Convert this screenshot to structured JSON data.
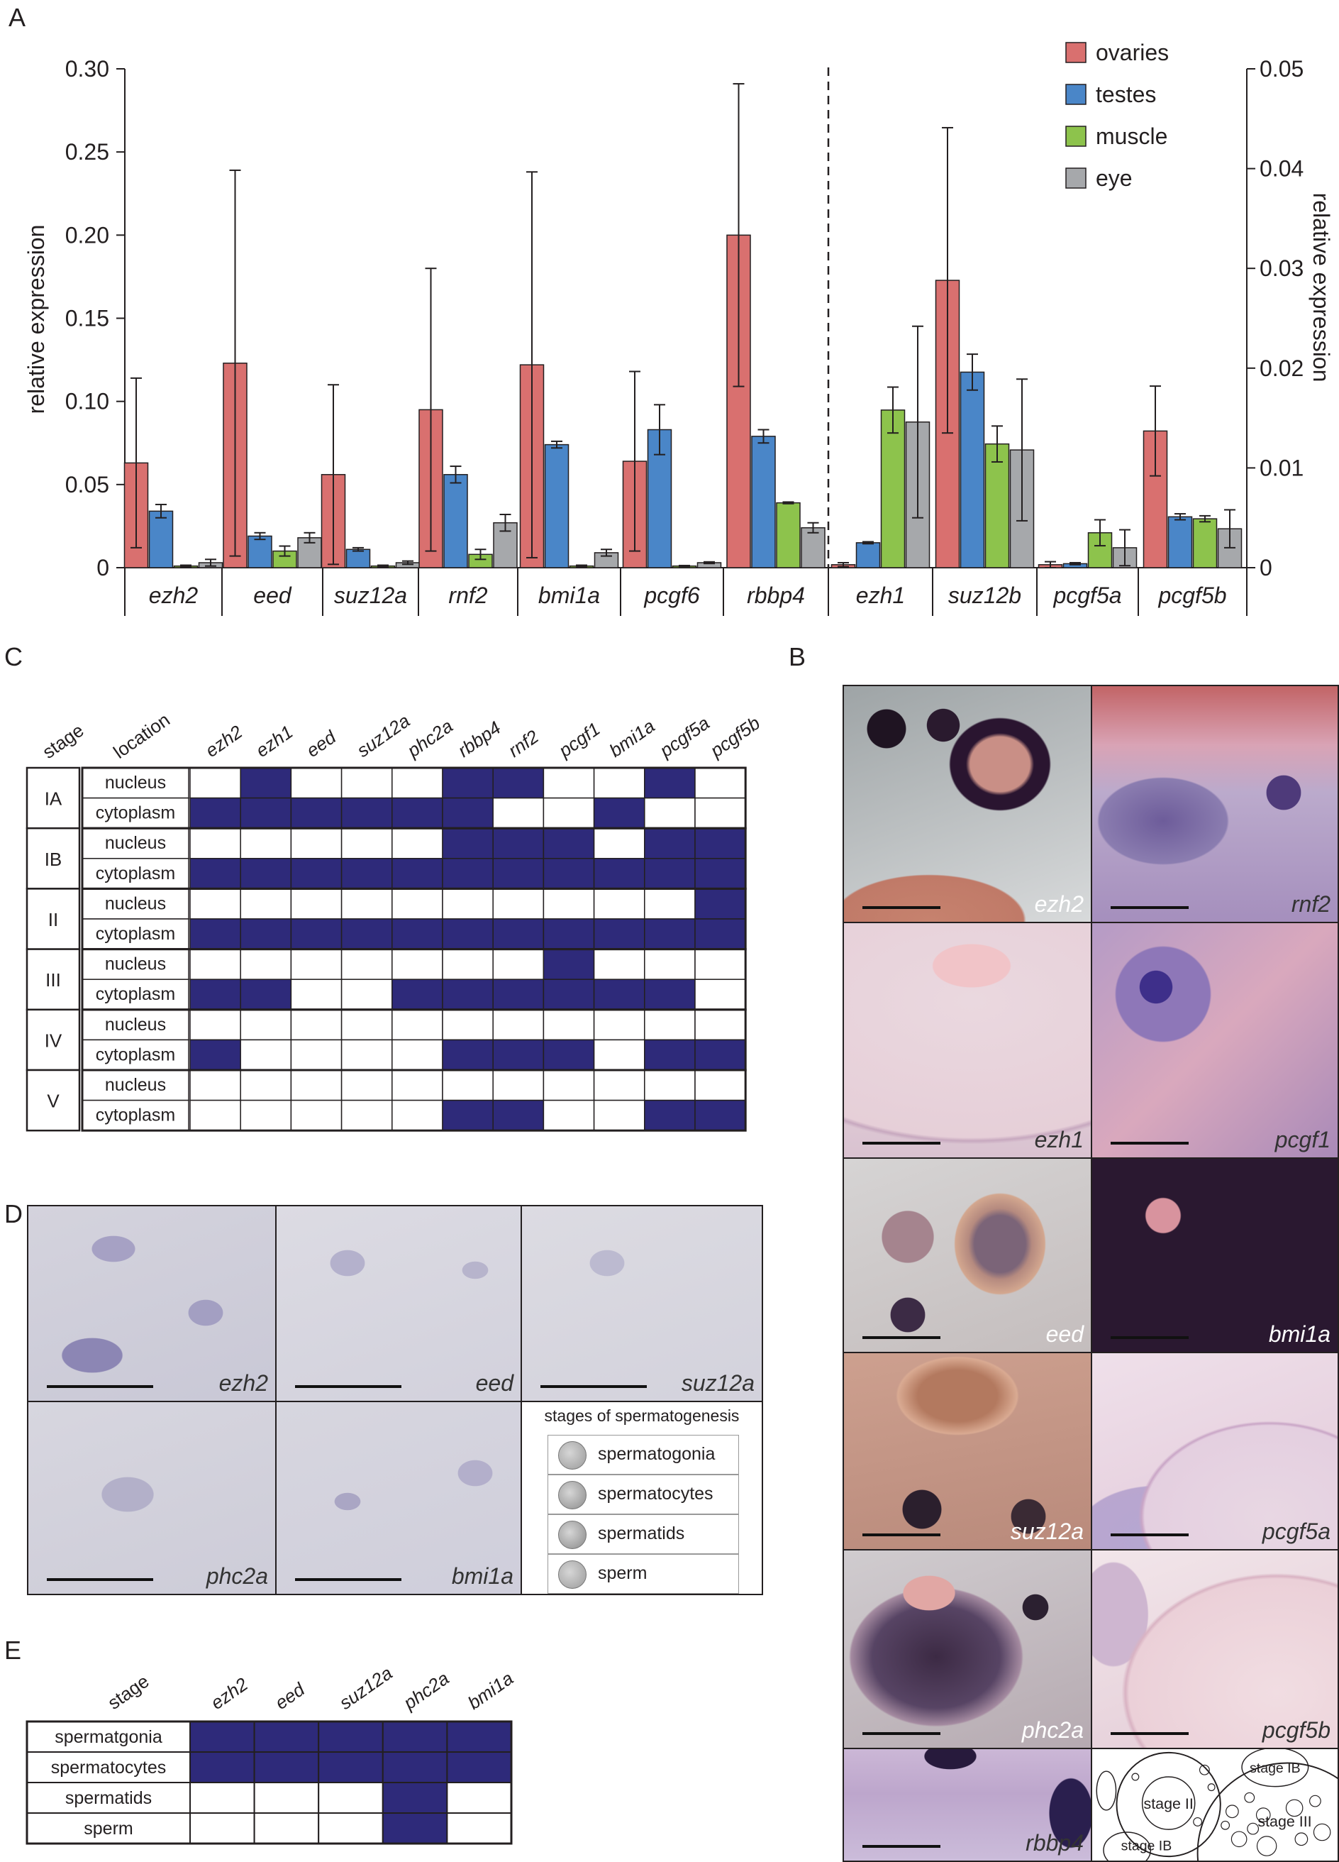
{
  "panels": {
    "a": "A",
    "b": "B",
    "c": "C",
    "d": "D",
    "e": "E"
  },
  "chart_data": {
    "type": "bar",
    "ylabel_left": "relative expression",
    "ylabel_right": "relative expression",
    "ylim_left": [
      0,
      0.3
    ],
    "ylim_right": [
      0,
      0.05
    ],
    "yticks_left": [
      "0",
      "0.05",
      "0.10",
      "0.15",
      "0.20",
      "0.25",
      "0.30"
    ],
    "yticks_right": [
      "0",
      "0.01",
      "0.02",
      "0.03",
      "0.04",
      "0.05"
    ],
    "colors": {
      "ovaries": "#d9706f",
      "testes": "#4a86c8",
      "muscle": "#8dc34c",
      "eye": "#a6a8ab"
    },
    "series_names": [
      "ovaries",
      "testes",
      "muscle",
      "eye"
    ],
    "groups_left": [
      {
        "gene": "ezh2",
        "values": [
          0.063,
          0.034,
          0.001,
          0.003
        ],
        "errors": [
          0.051,
          0.004,
          0.0005,
          0.002
        ]
      },
      {
        "gene": "eed",
        "values": [
          0.123,
          0.019,
          0.01,
          0.018
        ],
        "errors": [
          0.116,
          0.002,
          0.003,
          0.003
        ]
      },
      {
        "gene": "suz12a",
        "values": [
          0.056,
          0.011,
          0.001,
          0.003
        ],
        "errors": [
          0.054,
          0.001,
          0.0005,
          0.001
        ]
      },
      {
        "gene": "rnf2",
        "values": [
          0.095,
          0.056,
          0.008,
          0.027
        ],
        "errors": [
          0.085,
          0.005,
          0.003,
          0.005
        ]
      },
      {
        "gene": "bmi1a",
        "values": [
          0.122,
          0.074,
          0.001,
          0.009
        ],
        "errors": [
          0.116,
          0.002,
          0.0005,
          0.002
        ]
      },
      {
        "gene": "pcgf6",
        "values": [
          0.064,
          0.083,
          0.001,
          0.003
        ],
        "errors": [
          0.054,
          0.015,
          0.0003,
          0.0005
        ]
      },
      {
        "gene": "rbbp4",
        "values": [
          0.2,
          0.079,
          0.039,
          0.024
        ],
        "errors": [
          0.091,
          0.004,
          0.0005,
          0.003
        ]
      }
    ],
    "groups_right": [
      {
        "gene": "ezh1",
        "values": [
          0.0003,
          0.0025,
          0.0158,
          0.0146
        ],
        "errors": [
          0.0002,
          0.0001,
          0.0023,
          0.0096
        ]
      },
      {
        "gene": "suz12b",
        "values": [
          0.0288,
          0.0196,
          0.0124,
          0.0118
        ],
        "errors": [
          0.0153,
          0.0018,
          0.0018,
          0.0071
        ]
      },
      {
        "gene": "pcgf5a",
        "values": [
          0.0003,
          0.0004,
          0.0035,
          0.002
        ],
        "errors": [
          0.0003,
          0.0001,
          0.0013,
          0.0018
        ]
      },
      {
        "gene": "pcgf5b",
        "values": [
          0.0137,
          0.0051,
          0.0049,
          0.0039
        ],
        "errors": [
          0.0045,
          0.0003,
          0.0003,
          0.0019
        ]
      }
    ]
  },
  "table_c": {
    "header_stage": "stage",
    "header_location": "location",
    "genes": [
      "ezh2",
      "ezh1",
      "eed",
      "suz12a",
      "phc2a",
      "rbbp4",
      "rnf2",
      "pcgf1",
      "bmi1a",
      "pcgf5a",
      "pcgf5b"
    ],
    "stages": [
      "IA",
      "IB",
      "II",
      "III",
      "IV",
      "V"
    ],
    "locations": [
      "nucleus",
      "cytoplasm"
    ],
    "rows": [
      {
        "stage": "IA",
        "location": "nucleus",
        "cells": [
          0,
          1,
          0,
          0,
          0,
          1,
          1,
          0,
          0,
          1,
          0
        ]
      },
      {
        "stage": "IA",
        "location": "cytoplasm",
        "cells": [
          1,
          1,
          1,
          1,
          1,
          1,
          0,
          0,
          1,
          0,
          0
        ]
      },
      {
        "stage": "IB",
        "location": "nucleus",
        "cells": [
          0,
          0,
          0,
          0,
          0,
          1,
          1,
          1,
          0,
          1,
          1
        ]
      },
      {
        "stage": "IB",
        "location": "cytoplasm",
        "cells": [
          1,
          1,
          1,
          1,
          1,
          1,
          1,
          1,
          1,
          1,
          1
        ]
      },
      {
        "stage": "II",
        "location": "nucleus",
        "cells": [
          0,
          0,
          0,
          0,
          0,
          0,
          0,
          0,
          0,
          0,
          1
        ]
      },
      {
        "stage": "II",
        "location": "cytoplasm",
        "cells": [
          1,
          1,
          1,
          1,
          1,
          1,
          1,
          1,
          1,
          1,
          1
        ]
      },
      {
        "stage": "III",
        "location": "nucleus",
        "cells": [
          0,
          0,
          0,
          0,
          0,
          0,
          0,
          1,
          0,
          0,
          0
        ]
      },
      {
        "stage": "III",
        "location": "cytoplasm",
        "cells": [
          1,
          1,
          0,
          0,
          1,
          1,
          1,
          1,
          1,
          1,
          0
        ]
      },
      {
        "stage": "IV",
        "location": "nucleus",
        "cells": [
          0,
          0,
          0,
          0,
          0,
          0,
          0,
          0,
          0,
          0,
          0
        ]
      },
      {
        "stage": "IV",
        "location": "cytoplasm",
        "cells": [
          1,
          0,
          0,
          0,
          0,
          1,
          1,
          1,
          0,
          1,
          1
        ]
      },
      {
        "stage": "V",
        "location": "nucleus",
        "cells": [
          0,
          0,
          0,
          0,
          0,
          0,
          0,
          0,
          0,
          0,
          0
        ]
      },
      {
        "stage": "V",
        "location": "cytoplasm",
        "cells": [
          0,
          0,
          0,
          0,
          0,
          1,
          1,
          0,
          0,
          1,
          1
        ]
      }
    ]
  },
  "panel_b_labels": [
    "ezh2",
    "rnf2",
    "ezh1",
    "pcgf1",
    "eed",
    "bmi1a",
    "suz12a",
    "pcgf5a",
    "phc2a",
    "pcgf5b",
    "rbbp4"
  ],
  "panel_b_diagram": {
    "labels": [
      "stage II",
      "stage IB",
      "stage III",
      "stage IB"
    ]
  },
  "panel_d_labels": [
    "ezh2",
    "eed",
    "suz12a",
    "phc2a",
    "bmi1a"
  ],
  "panel_d_legend": {
    "title": "stages of spermatogenesis",
    "items": [
      "spermatogonia",
      "spermatocytes",
      "spermatids",
      "sperm"
    ]
  },
  "table_e": {
    "header_stage": "stage",
    "genes": [
      "ezh2",
      "eed",
      "suz12a",
      "phc2a",
      "bmi1a"
    ],
    "rows": [
      {
        "stage": "spermatgonia",
        "cells": [
          1,
          1,
          1,
          1,
          1
        ]
      },
      {
        "stage": "spermatocytes",
        "cells": [
          1,
          1,
          1,
          1,
          1
        ]
      },
      {
        "stage": "spermatids",
        "cells": [
          0,
          0,
          0,
          1,
          0
        ]
      },
      {
        "stage": "sperm",
        "cells": [
          0,
          0,
          0,
          1,
          0
        ]
      }
    ]
  },
  "palette": {
    "fill": "#2e2a7a",
    "line": "#231f20"
  }
}
